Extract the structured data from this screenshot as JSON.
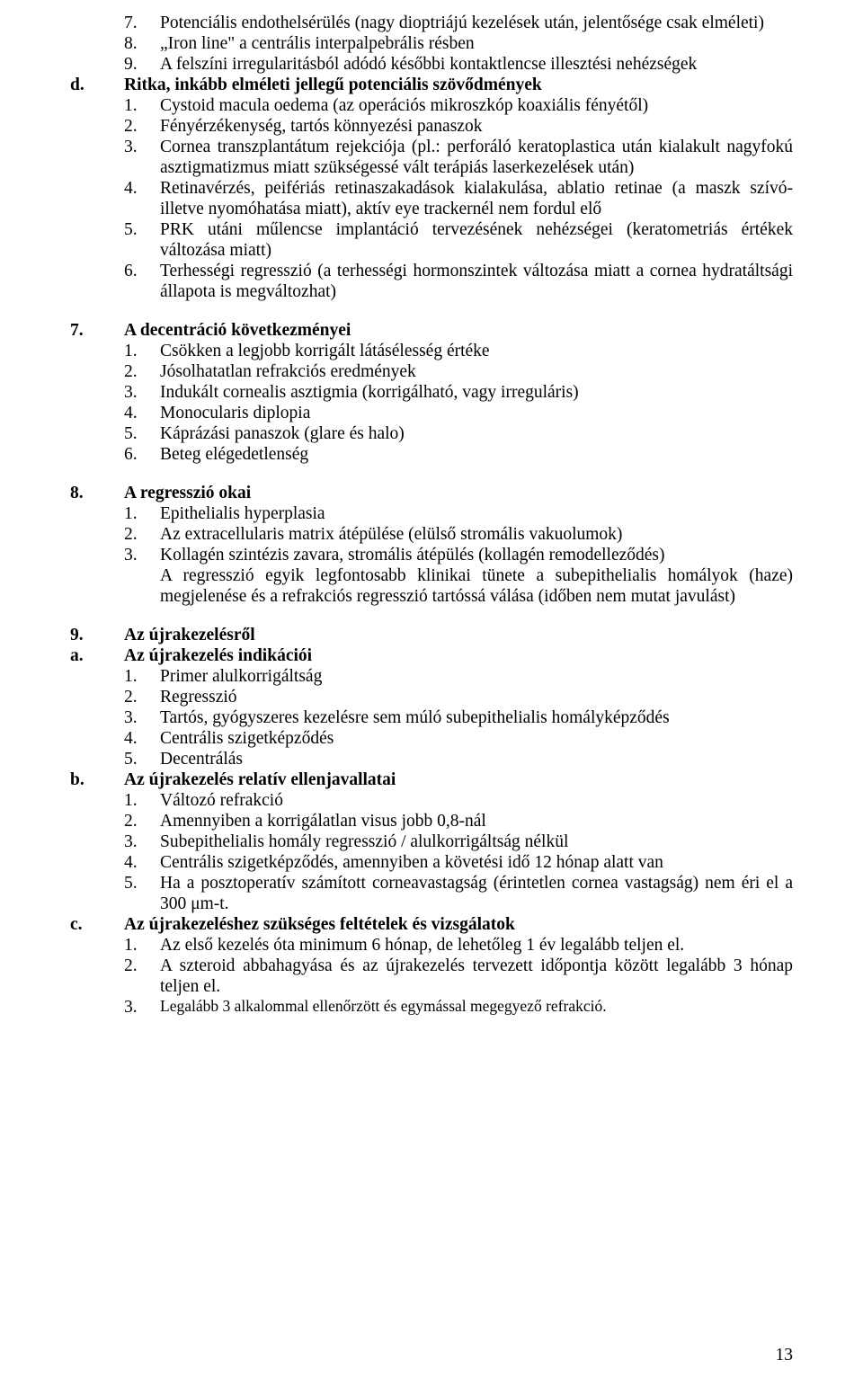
{
  "blockA": {
    "items": [
      {
        "marker": "",
        "num": "7.",
        "text": "Potenciális endothelsérülés (nagy dioptriájú kezelések után, jelentősége csak elméleti)",
        "bold": false,
        "justify": true
      },
      {
        "marker": "",
        "num": "8.",
        "text": "„Iron line\" a centrális interpalpebrális résben",
        "bold": false,
        "justify": false
      },
      {
        "marker": "",
        "num": "9.",
        "text": "A felszíni irregularitásból adódó későbbi kontaktlencse illesztési nehézségek",
        "bold": false,
        "justify": false
      },
      {
        "marker": "d.",
        "num": "",
        "text": "Ritka, inkább elméleti jellegű potenciális szövődmények",
        "bold": true,
        "justify": false
      },
      {
        "marker": "",
        "num": "1.",
        "text": "Cystoid macula oedema (az operációs mikroszkóp koaxiális fényétől)",
        "bold": false,
        "justify": false
      },
      {
        "marker": "",
        "num": "2.",
        "text": "Fényérzékenység, tartós könnyezési panaszok",
        "bold": false,
        "justify": false
      },
      {
        "marker": "",
        "num": "3.",
        "text": "Cornea transzplantátum rejekciója (pl.: perforáló keratoplastica után kialakult nagyfokú asztigmatizmus miatt szükségessé vált terápiás laserkezelések után)",
        "bold": false,
        "justify": true
      },
      {
        "marker": "",
        "num": "4.",
        "text": "Retinavérzés, peifériás retinaszakadások kialakulása, ablatio retinae (a maszk szívó- illetve nyomóhatása miatt), aktív eye trackernél nem fordul elő",
        "bold": false,
        "justify": true
      },
      {
        "marker": "",
        "num": "5.",
        "text": "PRK utáni műlencse implantáció tervezésének nehézségei (keratometriás értékek változása miatt)",
        "bold": false,
        "justify": true
      },
      {
        "marker": "",
        "num": "6.",
        "text": "Terhességi regresszió (a terhességi hormonszintek változása miatt a cornea hydratáltsági állapota is megváltozhat)",
        "bold": false,
        "justify": true
      }
    ]
  },
  "section7": {
    "marker": "7.",
    "title": "A decentráció következményei",
    "items": [
      {
        "num": "1.",
        "text": "Csökken a legjobb korrigált látásélesség értéke"
      },
      {
        "num": "2.",
        "text": "Jósolhatatlan refrakciós eredmények"
      },
      {
        "num": "3.",
        "text": "Indukált cornealis asztigmia (korrigálható, vagy irreguláris)"
      },
      {
        "num": "4.",
        "text": "Monocularis diplopia"
      },
      {
        "num": "5.",
        "text": "Káprázási panaszok (glare és halo)"
      },
      {
        "num": "6.",
        "text": "Beteg elégedetlenség"
      }
    ]
  },
  "section8": {
    "marker": "8.",
    "title": "A regresszió okai",
    "items": [
      {
        "num": "1.",
        "text": "Epithelialis hyperplasia"
      },
      {
        "num": "2.",
        "text": "Az extracellularis matrix átépülése (elülső stromális vakuolumok)"
      },
      {
        "num": "3.",
        "text": "Kollagén szintézis zavara, stromális átépülés (kollagén remodelleződés)"
      }
    ],
    "tail": "A regresszió egyik legfontosabb klinikai tünete a subepithelialis homályok (haze) megjelenése és a refrakciós regresszió tartóssá válása (időben nem mutat javulást)"
  },
  "section9": {
    "marker": "9.",
    "title": "Az újrakezelésről",
    "subA": {
      "marker": "a.",
      "title": "Az újrakezelés indikációi",
      "items": [
        {
          "num": "1.",
          "text": "Primer alulkorrigáltság"
        },
        {
          "num": "2.",
          "text": "Regresszió"
        },
        {
          "num": "3.",
          "text": "Tartós, gyógyszeres kezelésre sem múló subepithelialis homályképződés"
        },
        {
          "num": "4.",
          "text": "Centrális szigetképződés"
        },
        {
          "num": "5.",
          "text": "Decentrálás"
        }
      ]
    },
    "subB": {
      "marker": "b.",
      "title": "Az újrakezelés relatív ellenjavallatai",
      "items": [
        {
          "num": "1.",
          "text": "Változó refrakció",
          "justify": false
        },
        {
          "num": "2.",
          "text": "Amennyiben a korrigálatlan visus jobb 0,8-nál",
          "justify": false
        },
        {
          "num": "3.",
          "text": "Subepithelialis homály regresszió / alulkorrigáltság nélkül",
          "justify": false
        },
        {
          "num": "4.",
          "text": "Centrális szigetképződés, amennyiben a követési idő 12 hónap alatt van",
          "justify": false
        },
        {
          "num": "5.",
          "text": "Ha a posztoperatív számított corneavastagság (érintetlen cornea vastagság) nem éri el a 300 μm-t.",
          "justify": true
        }
      ]
    },
    "subC": {
      "marker": "c.",
      "title": "Az újrakezeléshez szükséges feltételek és vizsgálatok",
      "items": [
        {
          "num": "1.",
          "text": "Az első kezelés óta minimum 6 hónap, de lehetőleg 1 év legalább teljen el.",
          "justify": false,
          "small": false
        },
        {
          "num": "2.",
          "text": "A szteroid abbahagyása és az újrakezelés tervezett időpontja között legalább 3 hónap teljen el.",
          "justify": true,
          "small": false
        },
        {
          "num": "3.",
          "text": "Legalább 3 alkalommal ellenőrzött és egymással megegyező refrakció.",
          "justify": false,
          "small": true
        }
      ]
    }
  },
  "pageNumber": "13"
}
